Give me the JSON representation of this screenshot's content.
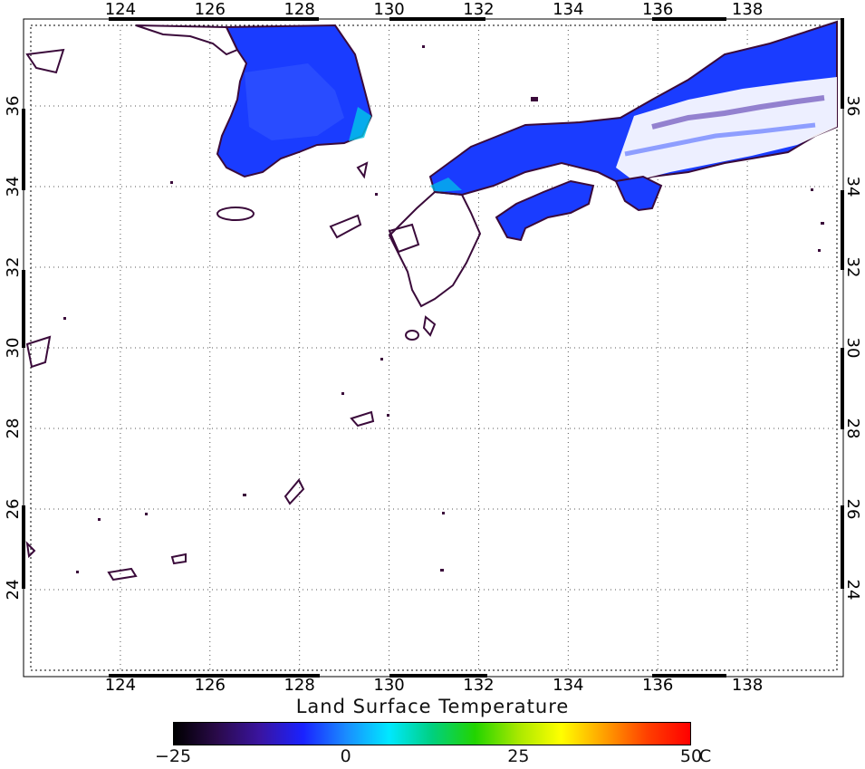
{
  "map": {
    "lon_ticks": [
      "124",
      "126",
      "128",
      "130",
      "132",
      "134",
      "136",
      "138"
    ],
    "lat_ticks": [
      "24",
      "26",
      "28",
      "30",
      "32",
      "34",
      "36"
    ],
    "lon_range": [
      122,
      140
    ],
    "lat_range": [
      22,
      38
    ]
  },
  "legend": {
    "title": "Land Surface Temperature",
    "ticks": [
      "−25",
      "0",
      "25",
      "50"
    ],
    "unit": "C",
    "range": [
      -25,
      50
    ],
    "colors": [
      "#000000",
      "#2a0a4a",
      "#3a14a0",
      "#1a22ff",
      "#1a8cff",
      "#00e8ff",
      "#00d080",
      "#22d400",
      "#a8e800",
      "#ffff00",
      "#ffa000",
      "#ff4000",
      "#ff0000"
    ]
  },
  "colors": {
    "coastline": "#3a0a3a",
    "cold_land": "#1a3cff",
    "snow": "#ffffff",
    "grid": "#555555",
    "frame": "#000000"
  }
}
